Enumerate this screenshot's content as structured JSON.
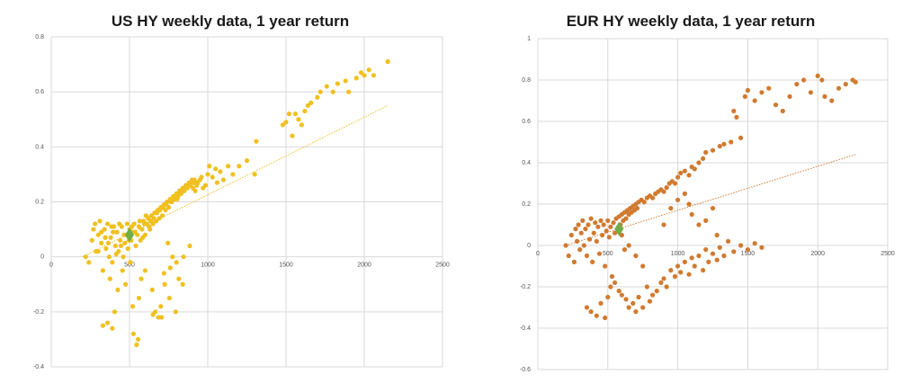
{
  "chart_data": [
    {
      "type": "scatter",
      "title": "US HY weekly data, 1 year return",
      "xlim": [
        0,
        2500
      ],
      "ylim": [
        -0.4,
        0.8
      ],
      "x_ticks": [
        0,
        500,
        1000,
        1500,
        2000,
        2500
      ],
      "y_ticks": [
        -0.4,
        -0.2,
        0,
        0.2,
        0.4,
        0.6,
        0.8
      ],
      "x_tick_labels": [
        "0",
        "500",
        "1000",
        "1500",
        "2000",
        "2500"
      ],
      "y_tick_labels": [
        "-0.4",
        "-0.2",
        "0",
        "0.2",
        "0.4",
        "0.6",
        "0.8"
      ],
      "grid": true,
      "point_color": "#F0C020",
      "highlight_color": "#70AD47",
      "trendline": {
        "x0": 200,
        "y0": 0.0,
        "x1": 2150,
        "y1": 0.55,
        "color": "#F0C020",
        "style": "dotted"
      },
      "highlight": {
        "x": 500,
        "y": 0.08
      },
      "points": [
        [
          220,
          0.0
        ],
        [
          240,
          -0.02
        ],
        [
          260,
          0.06
        ],
        [
          270,
          0.1
        ],
        [
          280,
          0.12
        ],
        [
          285,
          0.02
        ],
        [
          300,
          0.08
        ],
        [
          310,
          0.13
        ],
        [
          320,
          0.05
        ],
        [
          330,
          -0.05
        ],
        [
          340,
          0.1
        ],
        [
          350,
          0.03
        ],
        [
          360,
          0.12
        ],
        [
          370,
          0.0
        ],
        [
          375,
          -0.08
        ],
        [
          380,
          0.07
        ],
        [
          390,
          -0.02
        ],
        [
          400,
          0.11
        ],
        [
          405,
          -0.2
        ],
        [
          410,
          0.04
        ],
        [
          420,
          0.09
        ],
        [
          425,
          -0.12
        ],
        [
          430,
          0.02
        ],
        [
          440,
          0.06
        ],
        [
          450,
          0.11
        ],
        [
          455,
          -0.05
        ],
        [
          460,
          0.0
        ],
        [
          470,
          0.05
        ],
        [
          475,
          -0.1
        ],
        [
          480,
          0.08
        ],
        [
          490,
          0.03
        ],
        [
          500,
          0.1
        ],
        [
          505,
          -0.02
        ],
        [
          510,
          0.06
        ],
        [
          520,
          0.09
        ],
        [
          525,
          -0.28
        ],
        [
          530,
          0.12
        ],
        [
          540,
          0.04
        ],
        [
          545,
          -0.32
        ],
        [
          550,
          0.08
        ],
        [
          555,
          -0.3
        ],
        [
          560,
          0.11
        ],
        [
          570,
          0.06
        ],
        [
          575,
          -0.08
        ],
        [
          580,
          0.1
        ],
        [
          590,
          0.13
        ],
        [
          600,
          0.08
        ],
        [
          610,
          0.12
        ],
        [
          620,
          0.14
        ],
        [
          630,
          0.1
        ],
        [
          640,
          0.15
        ],
        [
          645,
          -0.12
        ],
        [
          650,
          0.12
        ],
        [
          660,
          0.16
        ],
        [
          665,
          -0.2
        ],
        [
          670,
          0.13
        ],
        [
          680,
          0.17
        ],
        [
          685,
          -0.22
        ],
        [
          690,
          0.14
        ],
        [
          700,
          0.18
        ],
        [
          705,
          -0.22
        ],
        [
          710,
          0.15
        ],
        [
          720,
          0.19
        ],
        [
          725,
          -0.1
        ],
        [
          730,
          0.17
        ],
        [
          740,
          0.2
        ],
        [
          745,
          0.05
        ],
        [
          750,
          0.18
        ],
        [
          755,
          -0.15
        ],
        [
          760,
          0.21
        ],
        [
          770,
          0.2
        ],
        [
          775,
          0.0
        ],
        [
          780,
          0.22
        ],
        [
          790,
          0.21
        ],
        [
          795,
          -0.2
        ],
        [
          800,
          0.23
        ],
        [
          810,
          0.22
        ],
        [
          815,
          -0.08
        ],
        [
          820,
          0.24
        ],
        [
          830,
          0.23
        ],
        [
          840,
          0.25
        ],
        [
          845,
          0.0
        ],
        [
          850,
          0.24
        ],
        [
          860,
          0.26
        ],
        [
          870,
          0.25
        ],
        [
          880,
          0.27
        ],
        [
          885,
          0.04
        ],
        [
          890,
          0.26
        ],
        [
          900,
          0.28
        ],
        [
          910,
          0.27
        ],
        [
          920,
          0.24
        ],
        [
          930,
          0.26
        ],
        [
          950,
          0.28
        ],
        [
          970,
          0.25
        ],
        [
          1000,
          0.3
        ],
        [
          1010,
          0.33
        ],
        [
          1030,
          0.29
        ],
        [
          1050,
          0.32
        ],
        [
          1060,
          0.27
        ],
        [
          1080,
          0.31
        ],
        [
          1100,
          0.28
        ],
        [
          1130,
          0.33
        ],
        [
          1160,
          0.3
        ],
        [
          1200,
          0.33
        ],
        [
          1250,
          0.35
        ],
        [
          1300,
          0.3
        ],
        [
          1310,
          0.42
        ],
        [
          1480,
          0.48
        ],
        [
          1500,
          0.49
        ],
        [
          1520,
          0.52
        ],
        [
          1540,
          0.44
        ],
        [
          1560,
          0.52
        ],
        [
          1580,
          0.5
        ],
        [
          1600,
          0.48
        ],
        [
          1620,
          0.53
        ],
        [
          1640,
          0.55
        ],
        [
          1660,
          0.56
        ],
        [
          1700,
          0.58
        ],
        [
          1720,
          0.6
        ],
        [
          1760,
          0.62
        ],
        [
          1800,
          0.6
        ],
        [
          1830,
          0.63
        ],
        [
          1880,
          0.64
        ],
        [
          1900,
          0.6
        ],
        [
          1950,
          0.65
        ],
        [
          1980,
          0.67
        ],
        [
          2000,
          0.66
        ],
        [
          2030,
          0.68
        ],
        [
          2060,
          0.66
        ],
        [
          2150,
          0.71
        ],
        [
          300,
          0.02
        ],
        [
          320,
          0.09
        ],
        [
          345,
          0.07
        ],
        [
          365,
          0.05
        ],
        [
          385,
          0.11
        ],
        [
          395,
          0.09
        ],
        [
          415,
          0.01
        ],
        [
          435,
          0.12
        ],
        [
          445,
          0.04
        ],
        [
          465,
          0.08
        ],
        [
          485,
          0.12
        ],
        [
          495,
          0.06
        ],
        [
          515,
          0.11
        ],
        [
          535,
          0.09
        ],
        [
          565,
          0.13
        ],
        [
          585,
          0.07
        ],
        [
          595,
          0.12
        ],
        [
          605,
          0.15
        ],
        [
          625,
          0.11
        ],
        [
          635,
          0.13
        ],
        [
          655,
          0.14
        ],
        [
          675,
          0.16
        ],
        [
          695,
          0.17
        ],
        [
          715,
          0.18
        ],
        [
          735,
          0.19
        ],
        [
          765,
          0.2
        ],
        [
          785,
          0.22
        ],
        [
          805,
          0.21
        ],
        [
          825,
          0.23
        ],
        [
          835,
          0.24
        ],
        [
          855,
          0.25
        ],
        [
          875,
          0.26
        ],
        [
          895,
          0.27
        ],
        [
          905,
          0.25
        ],
        [
          915,
          0.28
        ],
        [
          935,
          0.27
        ],
        [
          960,
          0.29
        ],
        [
          985,
          0.26
        ],
        [
          330,
          -0.25
        ],
        [
          360,
          -0.24
        ],
        [
          390,
          -0.26
        ],
        [
          520,
          -0.18
        ],
        [
          560,
          -0.15
        ],
        [
          600,
          -0.05
        ],
        [
          650,
          -0.21
        ],
        [
          700,
          -0.18
        ],
        [
          720,
          -0.06
        ],
        [
          760,
          -0.04
        ],
        [
          800,
          -0.02
        ],
        [
          840,
          -0.1
        ]
      ]
    },
    {
      "type": "scatter",
      "title": "EUR HY weekly data, 1 year return",
      "xlim": [
        0,
        2500
      ],
      "ylim": [
        -0.6,
        1.0
      ],
      "x_ticks": [
        0,
        500,
        1000,
        1500,
        2000,
        2500
      ],
      "y_ticks": [
        -0.6,
        -0.4,
        -0.2,
        0,
        0.2,
        0.4,
        0.6,
        0.8,
        1.0
      ],
      "x_tick_labels": [
        "0",
        "500",
        "1000",
        "1500",
        "2000",
        "2500"
      ],
      "y_tick_labels": [
        "-0.6",
        "-0.4",
        "-0.2",
        "0",
        "0.2",
        "0.4",
        "0.6",
        "0.8",
        "1"
      ],
      "grid": true,
      "point_color": "#D07A30",
      "highlight_color": "#70AD47",
      "trendline": {
        "x0": 200,
        "y0": 0.0,
        "x1": 2270,
        "y1": 0.44,
        "color": "#D07A30",
        "style": "dotted"
      },
      "highlight": {
        "x": 580,
        "y": 0.08
      },
      "points": [
        [
          200,
          0.0
        ],
        [
          220,
          -0.05
        ],
        [
          240,
          0.05
        ],
        [
          260,
          -0.08
        ],
        [
          270,
          0.08
        ],
        [
          280,
          0.02
        ],
        [
          290,
          0.1
        ],
        [
          300,
          -0.02
        ],
        [
          310,
          0.06
        ],
        [
          320,
          0.12
        ],
        [
          330,
          0.0
        ],
        [
          340,
          0.08
        ],
        [
          350,
          -0.05
        ],
        [
          360,
          0.1
        ],
        [
          370,
          0.03
        ],
        [
          380,
          0.13
        ],
        [
          390,
          -0.08
        ],
        [
          400,
          0.06
        ],
        [
          410,
          0.11
        ],
        [
          420,
          0.02
        ],
        [
          430,
          0.09
        ],
        [
          440,
          -0.04
        ],
        [
          450,
          0.12
        ],
        [
          460,
          0.05
        ],
        [
          470,
          0.1
        ],
        [
          480,
          -0.1
        ],
        [
          490,
          0.07
        ],
        [
          500,
          0.12
        ],
        [
          510,
          0.04
        ],
        [
          520,
          0.09
        ],
        [
          530,
          -0.15
        ],
        [
          540,
          0.11
        ],
        [
          550,
          0.06
        ],
        [
          560,
          0.13
        ],
        [
          570,
          0.08
        ],
        [
          580,
          0.14
        ],
        [
          590,
          0.1
        ],
        [
          600,
          0.15
        ],
        [
          610,
          0.12
        ],
        [
          620,
          0.16
        ],
        [
          630,
          0.13
        ],
        [
          640,
          0.17
        ],
        [
          650,
          0.15
        ],
        [
          660,
          0.18
        ],
        [
          670,
          0.16
        ],
        [
          680,
          0.19
        ],
        [
          690,
          0.17
        ],
        [
          700,
          0.2
        ],
        [
          710,
          0.18
        ],
        [
          720,
          0.21
        ],
        [
          740,
          0.22
        ],
        [
          760,
          0.21
        ],
        [
          780,
          0.23
        ],
        [
          800,
          0.24
        ],
        [
          820,
          0.23
        ],
        [
          840,
          0.25
        ],
        [
          860,
          0.26
        ],
        [
          880,
          0.27
        ],
        [
          900,
          0.26
        ],
        [
          920,
          0.28
        ],
        [
          940,
          0.3
        ],
        [
          960,
          0.31
        ],
        [
          980,
          0.3
        ],
        [
          1000,
          0.33
        ],
        [
          1020,
          0.35
        ],
        [
          1050,
          0.36
        ],
        [
          1080,
          0.34
        ],
        [
          1100,
          0.38
        ],
        [
          1120,
          0.37
        ],
        [
          1150,
          0.4
        ],
        [
          1180,
          0.42
        ],
        [
          1200,
          0.45
        ],
        [
          1250,
          0.46
        ],
        [
          1300,
          0.48
        ],
        [
          1330,
          0.49
        ],
        [
          1380,
          0.5
        ],
        [
          1400,
          0.65
        ],
        [
          1420,
          0.62
        ],
        [
          1450,
          0.52
        ],
        [
          1480,
          0.72
        ],
        [
          1500,
          0.75
        ],
        [
          1550,
          0.7
        ],
        [
          1600,
          0.74
        ],
        [
          1650,
          0.76
        ],
        [
          1700,
          0.68
        ],
        [
          1750,
          0.65
        ],
        [
          1800,
          0.72
        ],
        [
          1850,
          0.78
        ],
        [
          1900,
          0.8
        ],
        [
          1950,
          0.74
        ],
        [
          2000,
          0.82
        ],
        [
          2030,
          0.8
        ],
        [
          2050,
          0.72
        ],
        [
          2100,
          0.7
        ],
        [
          2150,
          0.76
        ],
        [
          2200,
          0.78
        ],
        [
          2250,
          0.8
        ],
        [
          2270,
          0.79
        ],
        [
          350,
          -0.3
        ],
        [
          380,
          -0.32
        ],
        [
          420,
          -0.34
        ],
        [
          450,
          -0.28
        ],
        [
          480,
          -0.35
        ],
        [
          500,
          -0.25
        ],
        [
          520,
          -0.2
        ],
        [
          550,
          -0.18
        ],
        [
          580,
          -0.22
        ],
        [
          600,
          -0.24
        ],
        [
          630,
          -0.26
        ],
        [
          650,
          -0.3
        ],
        [
          680,
          -0.28
        ],
        [
          700,
          -0.32
        ],
        [
          720,
          -0.25
        ],
        [
          750,
          -0.3
        ],
        [
          780,
          -0.2
        ],
        [
          800,
          -0.27
        ],
        [
          820,
          -0.24
        ],
        [
          850,
          -0.22
        ],
        [
          880,
          -0.18
        ],
        [
          900,
          -0.16
        ],
        [
          920,
          -0.2
        ],
        [
          950,
          -0.12
        ],
        [
          980,
          -0.15
        ],
        [
          1000,
          -0.1
        ],
        [
          1020,
          -0.13
        ],
        [
          1050,
          -0.08
        ],
        [
          1080,
          -0.14
        ],
        [
          1100,
          -0.06
        ],
        [
          1120,
          -0.1
        ],
        [
          1150,
          -0.05
        ],
        [
          1180,
          -0.12
        ],
        [
          1200,
          -0.02
        ],
        [
          1220,
          -0.08
        ],
        [
          1250,
          -0.04
        ],
        [
          1280,
          -0.07
        ],
        [
          1300,
          -0.01
        ],
        [
          1330,
          -0.05
        ],
        [
          1360,
          0.02
        ],
        [
          1400,
          -0.03
        ],
        [
          1450,
          0.0
        ],
        [
          1500,
          -0.02
        ],
        [
          1550,
          0.01
        ],
        [
          1600,
          -0.01
        ],
        [
          1100,
          0.15
        ],
        [
          1150,
          0.1
        ],
        [
          1200,
          0.12
        ],
        [
          1250,
          0.18
        ],
        [
          1280,
          0.05
        ],
        [
          1050,
          0.25
        ],
        [
          1080,
          0.2
        ],
        [
          900,
          0.1
        ],
        [
          950,
          0.18
        ],
        [
          1000,
          0.22
        ],
        [
          650,
          0.0
        ],
        [
          700,
          -0.05
        ],
        [
          750,
          -0.1
        ],
        [
          600,
          0.05
        ],
        [
          620,
          -0.02
        ]
      ]
    }
  ]
}
